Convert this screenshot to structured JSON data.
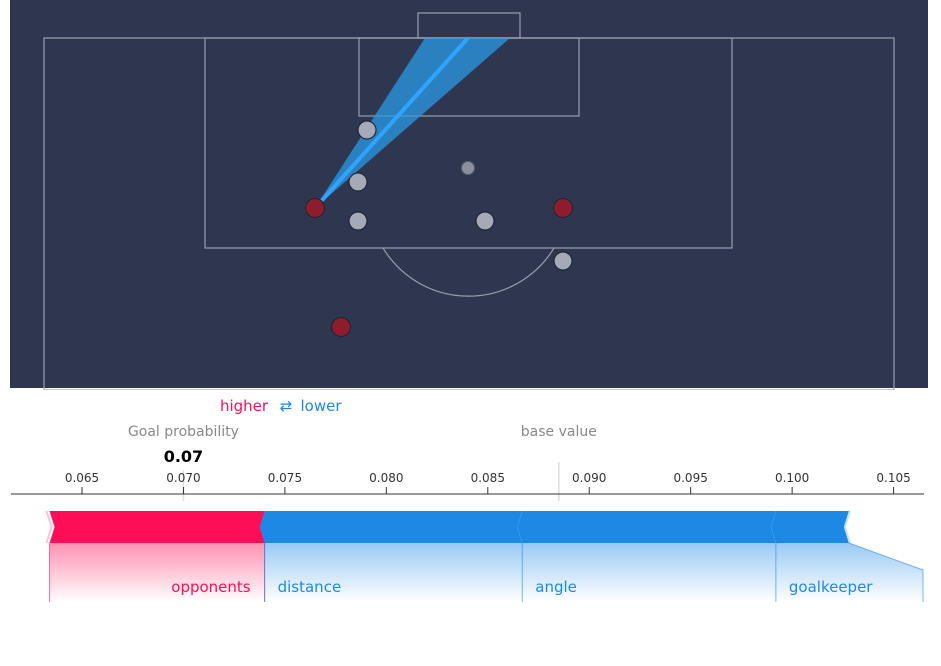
{
  "pitch": {
    "shooter": {
      "x": 315,
      "y": 208
    },
    "attackers": [
      {
        "x": 315,
        "y": 208
      },
      {
        "x": 563,
        "y": 208
      },
      {
        "x": 341,
        "y": 327
      }
    ],
    "defenders": [
      {
        "x": 367,
        "y": 130
      },
      {
        "x": 358,
        "y": 182
      },
      {
        "x": 358,
        "y": 221
      },
      {
        "x": 485,
        "y": 221
      },
      {
        "x": 563,
        "y": 261
      }
    ],
    "ball": {
      "x": 468,
      "y": 168
    }
  },
  "chart_data": {
    "type": "force",
    "output_name": "Goal probability",
    "output_value": 0.07,
    "output_value_label": "0.07",
    "base_value": 0.0885,
    "base_value_label": "base value",
    "legend": {
      "higher": "higher",
      "arrow": "⇄",
      "lower": "lower"
    },
    "xlim": [
      0.0615,
      0.1065
    ],
    "ticks": [
      0.065,
      0.07,
      0.075,
      0.08,
      0.085,
      0.09,
      0.095,
      0.1,
      0.105
    ],
    "tick_labels": [
      "0.065",
      "0.070",
      "0.075",
      "0.080",
      "0.085",
      "0.090",
      "0.095",
      "0.100",
      "0.105"
    ],
    "positive_features": [
      {
        "name": "opponents",
        "start": 0.0634,
        "end": 0.074
      }
    ],
    "negative_features": [
      {
        "name": "distance",
        "start": 0.074,
        "end": 0.0867
      },
      {
        "name": "angle",
        "start": 0.0867,
        "end": 0.0992
      },
      {
        "name": "goalkeeper",
        "start": 0.0992,
        "end": 0.1028
      }
    ],
    "colors": {
      "positive": "#ff0d57",
      "negative": "#1e88e5",
      "base": "#dddddd"
    }
  },
  "colors": {
    "pitch": "#2e3650",
    "line": "#9a9fad",
    "attacker": "#8f1c2c",
    "defender": "#a6a9b8",
    "cone": "#2b9be6"
  }
}
